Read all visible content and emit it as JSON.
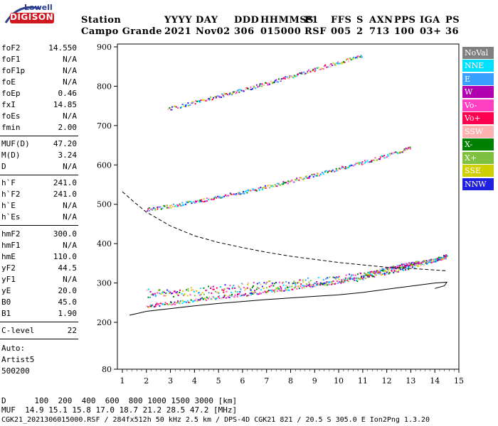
{
  "logo": {
    "top": "Lowell",
    "bottom": "DIGISONDE"
  },
  "header": {
    "row1": {
      "station": "Station",
      "yyyy": "YYYY",
      "day": "DAY",
      "ddd": "DDD",
      "hhmmss": "HHMMSS",
      "p1": "P1",
      "ffs": "FFS",
      "s": "S",
      "axn": "AXN",
      "pps": "PPS",
      "iga": "IGA",
      "ps": "PS"
    },
    "row2": {
      "station": "Campo Grande",
      "yyyy": "2021",
      "day": "Nov02",
      "ddd": "306",
      "hhmmss": "015000",
      "p1": "RSF",
      "ffs": "005",
      "s": "2",
      "axn": "713",
      "pps": "100",
      "iga": "03+",
      "ps": "36"
    }
  },
  "params": {
    "group1": [
      {
        "k": "foF2",
        "v": "14.550"
      },
      {
        "k": "foF1",
        "v": "N/A"
      },
      {
        "k": "foF1p",
        "v": "N/A"
      },
      {
        "k": "foE",
        "v": "N/A"
      },
      {
        "k": "foEp",
        "v": "0.46"
      },
      {
        "k": "fxI",
        "v": "14.85"
      },
      {
        "k": "foEs",
        "v": "N/A"
      },
      {
        "k": "fmin",
        "v": "2.00"
      }
    ],
    "group2": [
      {
        "k": "MUF(D)",
        "v": "47.20"
      },
      {
        "k": "M(D)",
        "v": "3.24"
      },
      {
        "k": "D",
        "v": "N/A"
      }
    ],
    "group3": [
      {
        "k": "h`F",
        "v": "241.0"
      },
      {
        "k": "h`F2",
        "v": "241.0"
      },
      {
        "k": "h`E",
        "v": "N/A"
      },
      {
        "k": "h`Es",
        "v": "N/A"
      }
    ],
    "group4": [
      {
        "k": "hmF2",
        "v": "300.0"
      },
      {
        "k": "hmF1",
        "v": "N/A"
      },
      {
        "k": "hmE",
        "v": "110.0"
      },
      {
        "k": "yF2",
        "v": "44.5"
      },
      {
        "k": "yF1",
        "v": "N/A"
      },
      {
        "k": "yE",
        "v": "20.0"
      },
      {
        "k": "B0",
        "v": "45.0"
      },
      {
        "k": "B1",
        "v": "1.90"
      }
    ],
    "group5": [
      {
        "k": "C-level",
        "v": "22"
      }
    ],
    "auto": [
      "Auto:",
      "Artist5",
      "500200"
    ]
  },
  "legend": [
    {
      "label": "NoVal",
      "bg": "#808080",
      "fg": "#ffffff"
    },
    {
      "label": "NNE",
      "bg": "#00e0ff",
      "fg": "#ffffff"
    },
    {
      "label": "E",
      "bg": "#3aa0ff",
      "fg": "#ffffff"
    },
    {
      "label": "W",
      "bg": "#b000b0",
      "fg": "#ffffff"
    },
    {
      "label": "Vo-",
      "bg": "#ff40c0",
      "fg": "#ffffff"
    },
    {
      "label": "Vo+",
      "bg": "#ff0050",
      "fg": "#ffffff"
    },
    {
      "label": "SSW",
      "bg": "#ffb0b0",
      "fg": "#ffffff"
    },
    {
      "label": "X-",
      "bg": "#008000",
      "fg": "#ffffff"
    },
    {
      "label": "X+",
      "bg": "#80c040",
      "fg": "#ffffff"
    },
    {
      "label": "SSE",
      "bg": "#d0d000",
      "fg": "#ffffff"
    },
    {
      "label": "NNW",
      "bg": "#2020e0",
      "fg": "#ffffff"
    }
  ],
  "chart_data": {
    "type": "scatter",
    "title": "",
    "xlabel": "",
    "ylabel": "",
    "xlim": [
      1,
      15
    ],
    "ylim": [
      80,
      900
    ],
    "x_ticks": [
      1,
      2,
      3,
      4,
      5,
      6,
      7,
      8,
      9,
      10,
      11,
      12,
      13,
      14,
      15
    ],
    "y_ticks": [
      80,
      200,
      300,
      400,
      500,
      600,
      700,
      800,
      900
    ],
    "grid": false,
    "traces": [
      {
        "name": "F2 O-trace",
        "points": [
          [
            2,
            243
          ],
          [
            3,
            250
          ],
          [
            4,
            258
          ],
          [
            5,
            265
          ],
          [
            6,
            272
          ],
          [
            7,
            280
          ],
          [
            8,
            288
          ],
          [
            9,
            296
          ],
          [
            10,
            305
          ],
          [
            11,
            316
          ],
          [
            12,
            328
          ],
          [
            13,
            342
          ],
          [
            14,
            360
          ],
          [
            14.5,
            372
          ]
        ]
      },
      {
        "name": "F2 second-hop",
        "points": [
          [
            2,
            488
          ],
          [
            3,
            497
          ],
          [
            4,
            508
          ],
          [
            5,
            520
          ],
          [
            6,
            532
          ],
          [
            7,
            546
          ],
          [
            8,
            560
          ],
          [
            9,
            576
          ],
          [
            10,
            592
          ],
          [
            11,
            608
          ],
          [
            12,
            625
          ],
          [
            13,
            645
          ]
        ]
      },
      {
        "name": "F2 third-hop",
        "points": [
          [
            2.9,
            744
          ],
          [
            4,
            760
          ],
          [
            5,
            776
          ],
          [
            6,
            792
          ],
          [
            7,
            808
          ],
          [
            8,
            826
          ],
          [
            9,
            844
          ],
          [
            10,
            862
          ],
          [
            11,
            880
          ]
        ]
      },
      {
        "name": "E-sector trace",
        "points": [
          [
            2,
            275
          ],
          [
            3,
            277
          ],
          [
            4,
            280
          ],
          [
            5,
            285
          ],
          [
            6,
            290
          ],
          [
            7,
            296
          ],
          [
            8,
            300
          ],
          [
            9,
            305
          ],
          [
            10,
            310
          ],
          [
            11,
            318
          ]
        ]
      },
      {
        "name": "W-sector trace",
        "points": [
          [
            11,
            322
          ],
          [
            11.5,
            330
          ],
          [
            12,
            338
          ],
          [
            12.5,
            344
          ],
          [
            13,
            350
          ],
          [
            13.5,
            355
          ],
          [
            14,
            360
          ],
          [
            14.5,
            368
          ]
        ]
      }
    ],
    "profile_solid": [
      [
        1.3,
        218
      ],
      [
        2,
        228
      ],
      [
        3,
        235
      ],
      [
        4,
        242
      ],
      [
        5,
        248
      ],
      [
        6,
        253
      ],
      [
        7,
        258
      ],
      [
        8,
        262
      ],
      [
        9,
        266
      ],
      [
        10,
        270
      ],
      [
        11,
        276
      ],
      [
        12,
        284
      ],
      [
        13,
        292
      ],
      [
        14,
        300
      ],
      [
        14.5,
        302
      ],
      [
        14.4,
        293
      ],
      [
        14,
        286
      ]
    ],
    "profile_dashed": [
      [
        1,
        532
      ],
      [
        1.5,
        505
      ],
      [
        2,
        480
      ],
      [
        3,
        445
      ],
      [
        4,
        420
      ],
      [
        5,
        403
      ],
      [
        6,
        390
      ],
      [
        7,
        378
      ],
      [
        8,
        368
      ],
      [
        9,
        360
      ],
      [
        10,
        352
      ],
      [
        11,
        346
      ],
      [
        12,
        340
      ],
      [
        13,
        337
      ],
      [
        14,
        333
      ],
      [
        14.5,
        331
      ]
    ]
  },
  "footer": {
    "d_line": "D      100  200  400  600  800 1000 1500 3000 [km]",
    "muf_line": "MUF  14.9 15.1 15.8 17.0 18.7 21.2 28.5 47.2 [MHz]",
    "info_line": "CGK21_2021306015000.RSF / 284fx512h 50 kHz 2.5 km / DPS-4D CGK21 821 / 20.5 S 305.0 E Ion2Png 1.3.20"
  }
}
